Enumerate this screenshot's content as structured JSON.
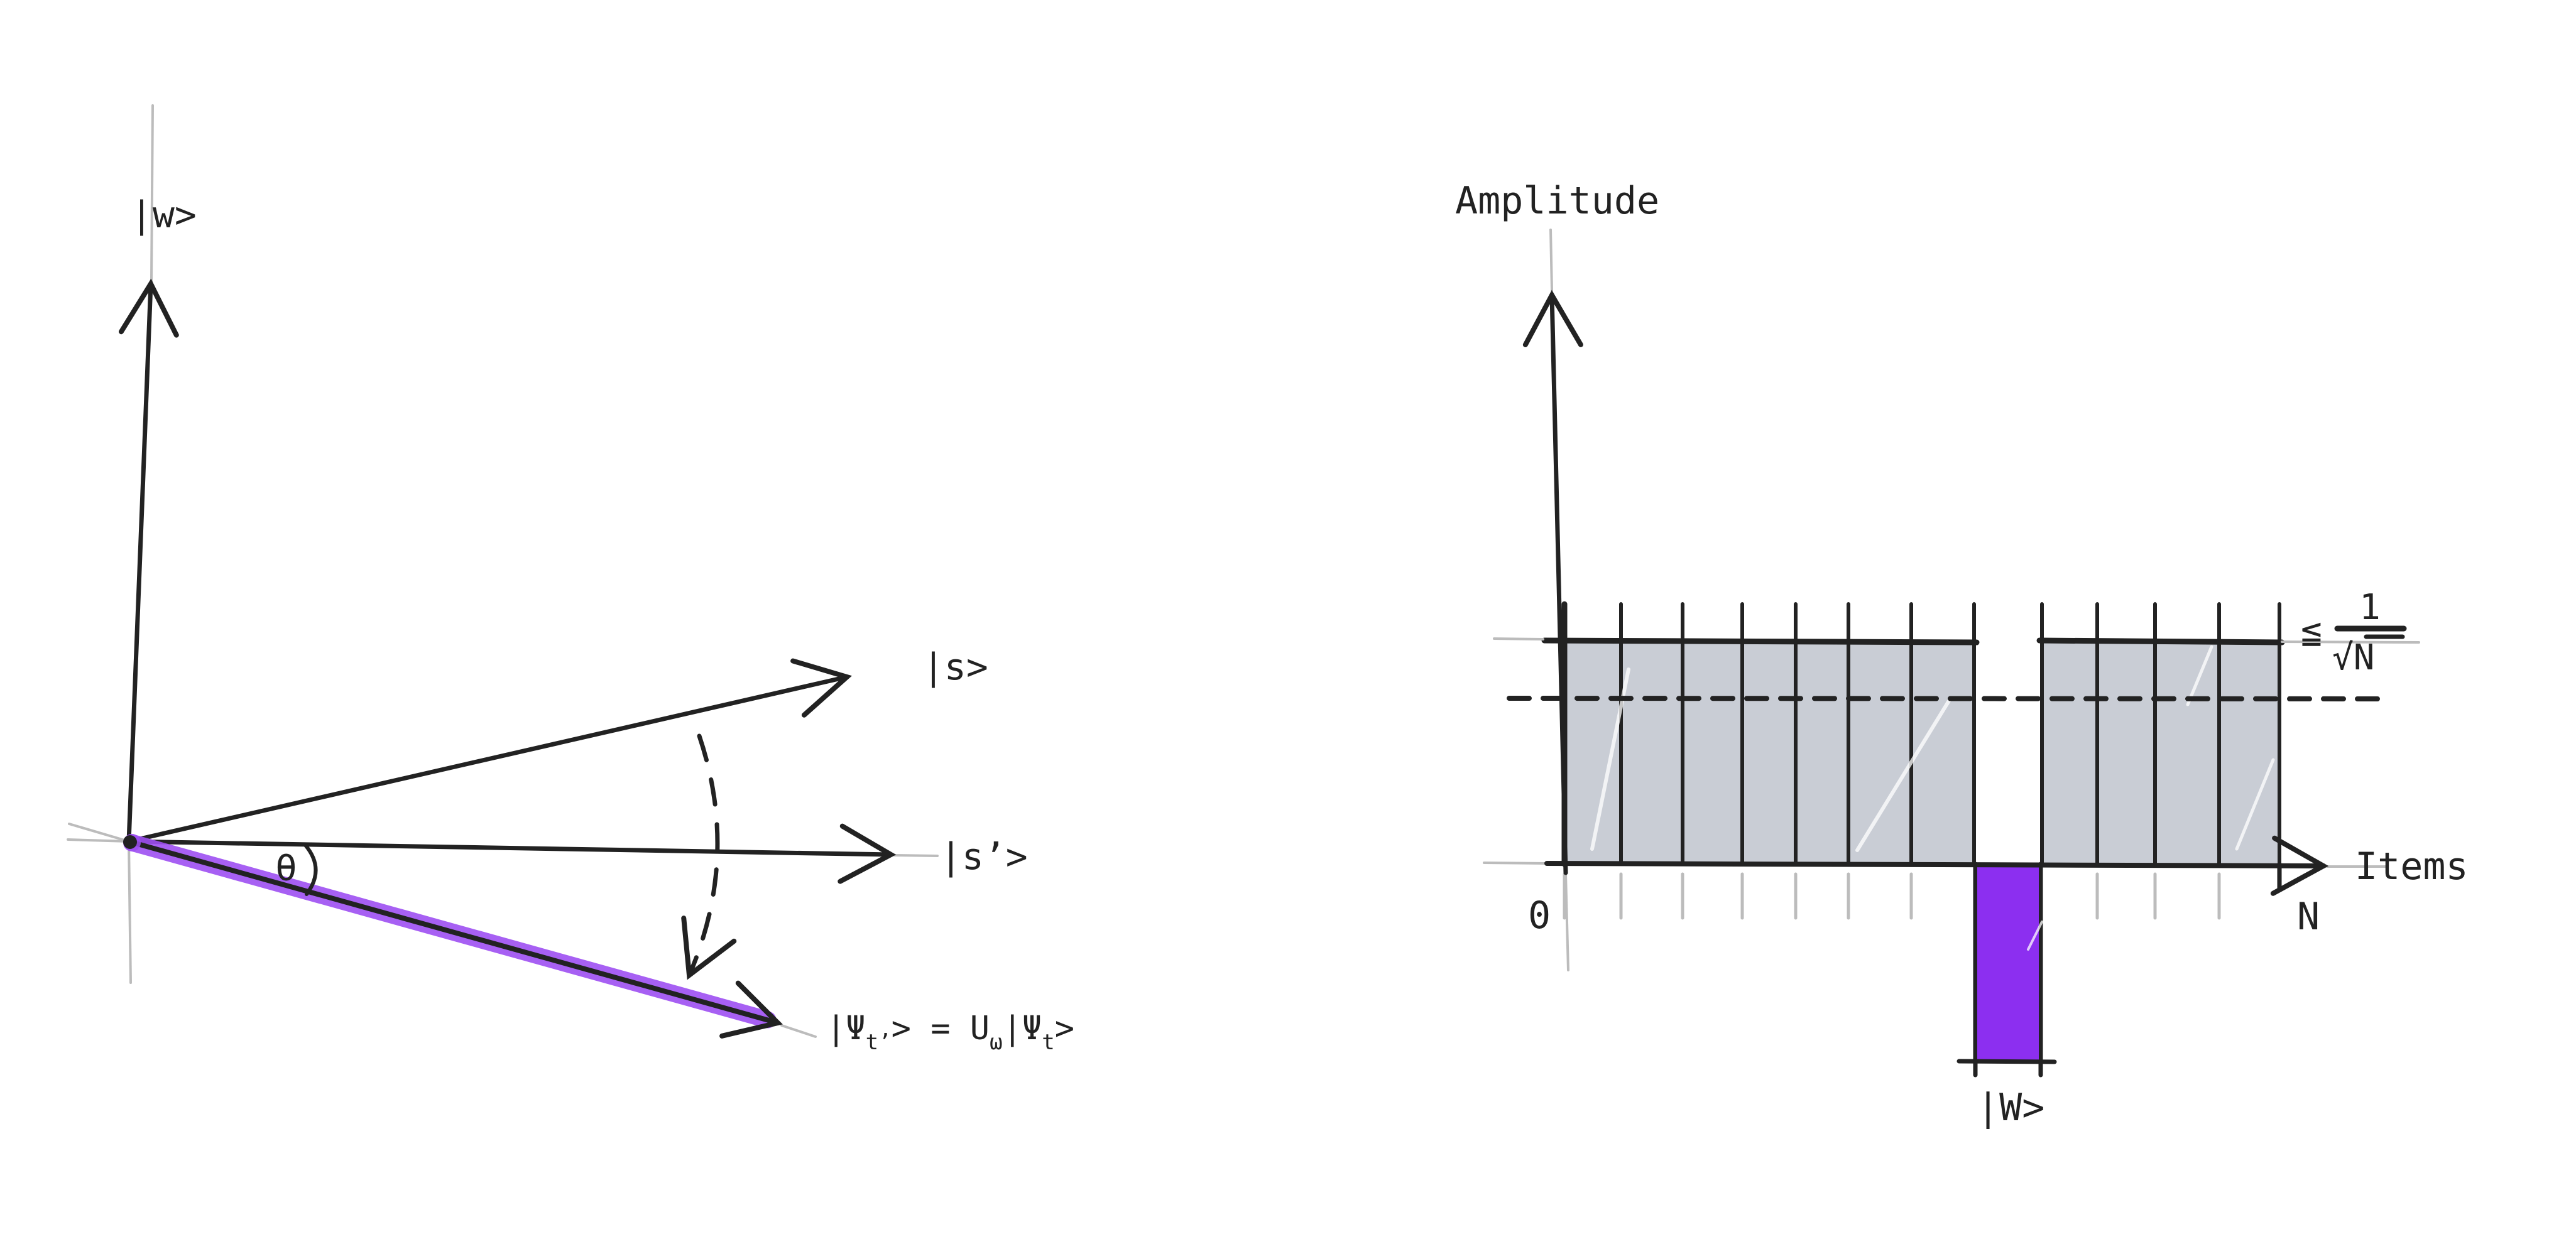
{
  "colors": {
    "ink": "#222222",
    "construction": "#bcbcbc",
    "bar_fill": "#c9cdd5",
    "purple": "#8c2ff0",
    "purple_halo": "#9d4ff2",
    "background": "#ffffff"
  },
  "left_diagram": {
    "w_axis_label": "|w>",
    "s_vector_label": "|s>",
    "s_prime_vector_label": "|s’>",
    "theta_label": "θ",
    "equation": {
      "psi1": "|Ψ",
      "sub_t_prime": "t’",
      "mid": "> = U",
      "sub_omega": "ω",
      "psi2": "|Ψ",
      "sub_t": "t",
      "ket_close": ">"
    }
  },
  "right_diagram": {
    "y_axis_label": "Amplitude",
    "x_axis_label": "Items",
    "origin_label": "0",
    "n_label": "N",
    "bound": {
      "leq": "≦",
      "numerator": "1",
      "denominator": "√N"
    },
    "target_label": "|W>"
  },
  "chart_data": {
    "type": "bar",
    "title": "",
    "xlabel": "Items",
    "ylabel": "Amplitude",
    "x_tick_labels": [
      "0",
      "N"
    ],
    "n_items": 12,
    "target_item_index": 7,
    "target_item_label": "|W>",
    "values_normalized": [
      0.29,
      0.29,
      0.29,
      0.29,
      0.29,
      0.29,
      0.29,
      -0.25,
      0.29,
      0.29,
      0.29,
      0.29
    ],
    "amplitude_upper_bound_label": "≦ 1/√N",
    "dashed_line_value": 0.21,
    "grid": false,
    "legend": false
  }
}
